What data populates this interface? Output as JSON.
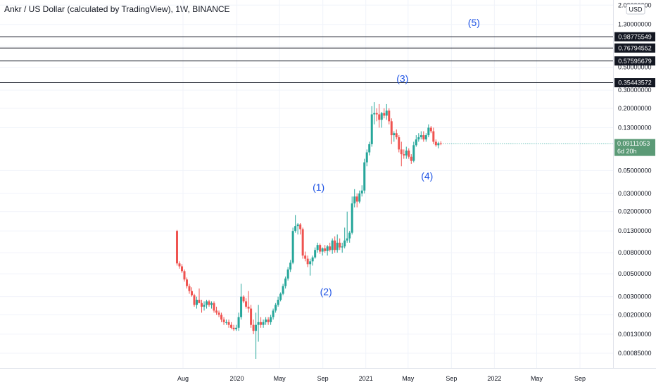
{
  "header": {
    "title": "Ankr / US Dollar (calculated by TradingView), 1W, BINANCE"
  },
  "currency_badge": "USD",
  "chart_data": {
    "type": "candlestick",
    "title": "Ankr / US Dollar (calculated by TradingView), 1W, BINANCE",
    "y_scale": "log",
    "y_ticks": [
      {
        "value": 2.0,
        "label": "2.00000000"
      },
      {
        "value": 1.3,
        "label": "1.30000000"
      },
      {
        "value": 0.8,
        "label": "0.80000000"
      },
      {
        "value": 0.5,
        "label": "0.50000000"
      },
      {
        "value": 0.3,
        "label": "0.30000000"
      },
      {
        "value": 0.2,
        "label": "0.20000000"
      },
      {
        "value": 0.13,
        "label": "0.13000000"
      },
      {
        "value": 0.05,
        "label": "0.05000000"
      },
      {
        "value": 0.03,
        "label": "0.03000000"
      },
      {
        "value": 0.02,
        "label": "0.02000000"
      },
      {
        "value": 0.013,
        "label": "0.01300000"
      },
      {
        "value": 0.008,
        "label": "0.00800000"
      },
      {
        "value": 0.005,
        "label": "0.00500000"
      },
      {
        "value": 0.003,
        "label": "0.00300000"
      },
      {
        "value": 0.002,
        "label": "0.00200000"
      },
      {
        "value": 0.0013,
        "label": "0.00130000"
      },
      {
        "value": 0.00085,
        "label": "0.00085000"
      }
    ],
    "x_ticks": [
      {
        "date": "2019-08",
        "label": "Aug"
      },
      {
        "date": "2020-01",
        "label": "2020"
      },
      {
        "date": "2020-05",
        "label": "May"
      },
      {
        "date": "2020-09",
        "label": "Sep"
      },
      {
        "date": "2021-01",
        "label": "2021"
      },
      {
        "date": "2021-05",
        "label": "May"
      },
      {
        "date": "2021-09",
        "label": "Sep"
      },
      {
        "date": "2022-01",
        "label": "2022"
      },
      {
        "date": "2022-05",
        "label": "May"
      },
      {
        "date": "2022-09",
        "label": "Sep"
      }
    ],
    "horizontal_levels": [
      {
        "value": 0.98775549,
        "label": "0.98775549"
      },
      {
        "value": 0.76794552,
        "label": "0.76794552"
      },
      {
        "value": 0.57595679,
        "label": "0.57595679"
      },
      {
        "value": 0.35443572,
        "label": "0.35443572"
      }
    ],
    "current_price": {
      "value": 0.09111053,
      "label": "0.09111053",
      "countdown": "6d 20h"
    },
    "wave_labels": [
      {
        "text": "(1)",
        "date": "2020-08-20",
        "price": 0.032
      },
      {
        "text": "(2)",
        "date": "2020-09-10",
        "price": 0.0031
      },
      {
        "text": "(3)",
        "date": "2021-04-15",
        "price": 0.36
      },
      {
        "text": "(4)",
        "date": "2021-06-24",
        "price": 0.041
      },
      {
        "text": "(5)",
        "date": "2021-11-04",
        "price": 1.25
      }
    ],
    "candles": [
      {
        "t": "2019-07-15",
        "o": 0.013,
        "h": 0.0133,
        "l": 0.006,
        "c": 0.0063
      },
      {
        "t": "2019-07-22",
        "o": 0.0063,
        "h": 0.0066,
        "l": 0.0056,
        "c": 0.0059
      },
      {
        "t": "2019-07-29",
        "o": 0.0059,
        "h": 0.0062,
        "l": 0.0051,
        "c": 0.0053
      },
      {
        "t": "2019-08-05",
        "o": 0.0053,
        "h": 0.0055,
        "l": 0.0042,
        "c": 0.0044
      },
      {
        "t": "2019-08-12",
        "o": 0.0044,
        "h": 0.0046,
        "l": 0.0036,
        "c": 0.0038
      },
      {
        "t": "2019-08-19",
        "o": 0.0038,
        "h": 0.004,
        "l": 0.0032,
        "c": 0.0034
      },
      {
        "t": "2019-08-26",
        "o": 0.0034,
        "h": 0.0037,
        "l": 0.003,
        "c": 0.0031
      },
      {
        "t": "2019-09-02",
        "o": 0.0031,
        "h": 0.0032,
        "l": 0.0024,
        "c": 0.0025
      },
      {
        "t": "2019-09-09",
        "o": 0.0025,
        "h": 0.003,
        "l": 0.0023,
        "c": 0.0028
      },
      {
        "t": "2019-09-16",
        "o": 0.0028,
        "h": 0.0036,
        "l": 0.0026,
        "c": 0.0026
      },
      {
        "t": "2019-09-23",
        "o": 0.0026,
        "h": 0.0028,
        "l": 0.0021,
        "c": 0.0024
      },
      {
        "t": "2019-09-30",
        "o": 0.0024,
        "h": 0.0027,
        "l": 0.0022,
        "c": 0.0025
      },
      {
        "t": "2019-10-07",
        "o": 0.0025,
        "h": 0.0028,
        "l": 0.0023,
        "c": 0.0027
      },
      {
        "t": "2019-10-14",
        "o": 0.0027,
        "h": 0.0028,
        "l": 0.0024,
        "c": 0.0025
      },
      {
        "t": "2019-10-21",
        "o": 0.0025,
        "h": 0.0027,
        "l": 0.0023,
        "c": 0.0026
      },
      {
        "t": "2019-10-28",
        "o": 0.0026,
        "h": 0.0027,
        "l": 0.0021,
        "c": 0.0022
      },
      {
        "t": "2019-11-04",
        "o": 0.0022,
        "h": 0.0024,
        "l": 0.002,
        "c": 0.0021
      },
      {
        "t": "2019-11-11",
        "o": 0.0021,
        "h": 0.0022,
        "l": 0.0019,
        "c": 0.002
      },
      {
        "t": "2019-11-18",
        "o": 0.002,
        "h": 0.0021,
        "l": 0.0017,
        "c": 0.0018
      },
      {
        "t": "2019-11-25",
        "o": 0.0018,
        "h": 0.0019,
        "l": 0.0016,
        "c": 0.0017
      },
      {
        "t": "2019-12-02",
        "o": 0.0017,
        "h": 0.0018,
        "l": 0.0016,
        "c": 0.0017
      },
      {
        "t": "2019-12-09",
        "o": 0.0017,
        "h": 0.0018,
        "l": 0.0015,
        "c": 0.0016
      },
      {
        "t": "2019-12-16",
        "o": 0.0016,
        "h": 0.0017,
        "l": 0.00145,
        "c": 0.0015
      },
      {
        "t": "2019-12-23",
        "o": 0.0015,
        "h": 0.0016,
        "l": 0.0014,
        "c": 0.00145
      },
      {
        "t": "2019-12-30",
        "o": 0.00145,
        "h": 0.0016,
        "l": 0.0014,
        "c": 0.0015
      },
      {
        "t": "2020-01-06",
        "o": 0.0015,
        "h": 0.0021,
        "l": 0.0014,
        "c": 0.0019
      },
      {
        "t": "2020-01-13",
        "o": 0.0019,
        "h": 0.004,
        "l": 0.0018,
        "c": 0.003
      },
      {
        "t": "2020-01-20",
        "o": 0.003,
        "h": 0.0031,
        "l": 0.0026,
        "c": 0.0027
      },
      {
        "t": "2020-01-27",
        "o": 0.0027,
        "h": 0.0029,
        "l": 0.0023,
        "c": 0.0024
      },
      {
        "t": "2020-02-03",
        "o": 0.0024,
        "h": 0.0034,
        "l": 0.0021,
        "c": 0.0023
      },
      {
        "t": "2020-02-10",
        "o": 0.0023,
        "h": 0.0025,
        "l": 0.0015,
        "c": 0.0016
      },
      {
        "t": "2020-02-17",
        "o": 0.0016,
        "h": 0.0018,
        "l": 0.0013,
        "c": 0.0014
      },
      {
        "t": "2020-02-24",
        "o": 0.0014,
        "h": 0.0021,
        "l": 0.00075,
        "c": 0.0016
      },
      {
        "t": "2020-03-02",
        "o": 0.0016,
        "h": 0.0025,
        "l": 0.0011,
        "c": 0.0017
      },
      {
        "t": "2020-03-09",
        "o": 0.0017,
        "h": 0.0019,
        "l": 0.0015,
        "c": 0.0016
      },
      {
        "t": "2020-03-16",
        "o": 0.0016,
        "h": 0.0018,
        "l": 0.0015,
        "c": 0.0017
      },
      {
        "t": "2020-03-23",
        "o": 0.0017,
        "h": 0.0019,
        "l": 0.0016,
        "c": 0.0018
      },
      {
        "t": "2020-03-30",
        "o": 0.0018,
        "h": 0.0019,
        "l": 0.0016,
        "c": 0.0017
      },
      {
        "t": "2020-04-06",
        "o": 0.0017,
        "h": 0.002,
        "l": 0.0016,
        "c": 0.0019
      },
      {
        "t": "2020-04-13",
        "o": 0.0019,
        "h": 0.0023,
        "l": 0.0018,
        "c": 0.0022
      },
      {
        "t": "2020-04-20",
        "o": 0.0022,
        "h": 0.0026,
        "l": 0.0021,
        "c": 0.0025
      },
      {
        "t": "2020-04-27",
        "o": 0.0025,
        "h": 0.003,
        "l": 0.0024,
        "c": 0.0028
      },
      {
        "t": "2020-05-04",
        "o": 0.0028,
        "h": 0.0033,
        "l": 0.0027,
        "c": 0.0032
      },
      {
        "t": "2020-05-11",
        "o": 0.0032,
        "h": 0.004,
        "l": 0.0031,
        "c": 0.0038
      },
      {
        "t": "2020-05-18",
        "o": 0.0038,
        "h": 0.0047,
        "l": 0.0036,
        "c": 0.0045
      },
      {
        "t": "2020-05-25",
        "o": 0.0045,
        "h": 0.0058,
        "l": 0.0043,
        "c": 0.0055
      },
      {
        "t": "2020-06-01",
        "o": 0.0055,
        "h": 0.0068,
        "l": 0.0052,
        "c": 0.0064
      },
      {
        "t": "2020-06-08",
        "o": 0.0064,
        "h": 0.014,
        "l": 0.0062,
        "c": 0.013
      },
      {
        "t": "2020-06-15",
        "o": 0.013,
        "h": 0.0185,
        "l": 0.0125,
        "c": 0.0145
      },
      {
        "t": "2020-06-22",
        "o": 0.0145,
        "h": 0.0155,
        "l": 0.012,
        "c": 0.015
      },
      {
        "t": "2020-06-29",
        "o": 0.015,
        "h": 0.0155,
        "l": 0.012,
        "c": 0.0135
      },
      {
        "t": "2020-07-06",
        "o": 0.0135,
        "h": 0.014,
        "l": 0.007,
        "c": 0.0075
      },
      {
        "t": "2020-07-13",
        "o": 0.0075,
        "h": 0.0082,
        "l": 0.0066,
        "c": 0.007
      },
      {
        "t": "2020-07-20",
        "o": 0.007,
        "h": 0.0075,
        "l": 0.0058,
        "c": 0.0062
      },
      {
        "t": "2020-07-27",
        "o": 0.0062,
        "h": 0.007,
        "l": 0.0048,
        "c": 0.0066
      },
      {
        "t": "2020-08-03",
        "o": 0.0066,
        "h": 0.0075,
        "l": 0.006,
        "c": 0.0072
      },
      {
        "t": "2020-08-10",
        "o": 0.0072,
        "h": 0.009,
        "l": 0.007,
        "c": 0.0085
      },
      {
        "t": "2020-08-17",
        "o": 0.0085,
        "h": 0.01,
        "l": 0.008,
        "c": 0.0095
      },
      {
        "t": "2020-08-24",
        "o": 0.0095,
        "h": 0.0098,
        "l": 0.0078,
        "c": 0.0082
      },
      {
        "t": "2020-08-31",
        "o": 0.0082,
        "h": 0.009,
        "l": 0.0075,
        "c": 0.0088
      },
      {
        "t": "2020-09-07",
        "o": 0.0088,
        "h": 0.0095,
        "l": 0.008,
        "c": 0.0083
      },
      {
        "t": "2020-09-14",
        "o": 0.0083,
        "h": 0.0095,
        "l": 0.0075,
        "c": 0.0092
      },
      {
        "t": "2020-09-21",
        "o": 0.0092,
        "h": 0.01,
        "l": 0.0082,
        "c": 0.0085
      },
      {
        "t": "2020-09-28",
        "o": 0.0085,
        "h": 0.011,
        "l": 0.0078,
        "c": 0.0105
      },
      {
        "t": "2020-10-05",
        "o": 0.0105,
        "h": 0.0115,
        "l": 0.008,
        "c": 0.0085
      },
      {
        "t": "2020-10-12",
        "o": 0.0085,
        "h": 0.012,
        "l": 0.008,
        "c": 0.01
      },
      {
        "t": "2020-10-19",
        "o": 0.01,
        "h": 0.011,
        "l": 0.0085,
        "c": 0.009
      },
      {
        "t": "2020-10-26",
        "o": 0.009,
        "h": 0.01,
        "l": 0.008,
        "c": 0.0092
      },
      {
        "t": "2020-11-02",
        "o": 0.0092,
        "h": 0.014,
        "l": 0.0088,
        "c": 0.0105
      },
      {
        "t": "2020-11-09",
        "o": 0.0105,
        "h": 0.02,
        "l": 0.01,
        "c": 0.011
      },
      {
        "t": "2020-11-16",
        "o": 0.011,
        "h": 0.013,
        "l": 0.01,
        "c": 0.0125
      },
      {
        "t": "2020-11-23",
        "o": 0.0125,
        "h": 0.028,
        "l": 0.012,
        "c": 0.024
      },
      {
        "t": "2020-11-30",
        "o": 0.024,
        "h": 0.033,
        "l": 0.022,
        "c": 0.028
      },
      {
        "t": "2020-12-07",
        "o": 0.028,
        "h": 0.03,
        "l": 0.022,
        "c": 0.025
      },
      {
        "t": "2020-12-14",
        "o": 0.025,
        "h": 0.032,
        "l": 0.024,
        "c": 0.03
      },
      {
        "t": "2020-12-21",
        "o": 0.03,
        "h": 0.036,
        "l": 0.028,
        "c": 0.032
      },
      {
        "t": "2020-12-28",
        "o": 0.032,
        "h": 0.065,
        "l": 0.03,
        "c": 0.06
      },
      {
        "t": "2021-01-04",
        "o": 0.06,
        "h": 0.08,
        "l": 0.055,
        "c": 0.075
      },
      {
        "t": "2021-01-11",
        "o": 0.075,
        "h": 0.095,
        "l": 0.07,
        "c": 0.09
      },
      {
        "t": "2021-01-18",
        "o": 0.09,
        "h": 0.21,
        "l": 0.085,
        "c": 0.175
      },
      {
        "t": "2021-01-25",
        "o": 0.175,
        "h": 0.23,
        "l": 0.14,
        "c": 0.18
      },
      {
        "t": "2021-02-01",
        "o": 0.18,
        "h": 0.2,
        "l": 0.15,
        "c": 0.175
      },
      {
        "t": "2021-02-08",
        "o": 0.175,
        "h": 0.22,
        "l": 0.13,
        "c": 0.155
      },
      {
        "t": "2021-02-15",
        "o": 0.155,
        "h": 0.185,
        "l": 0.13,
        "c": 0.18
      },
      {
        "t": "2021-02-22",
        "o": 0.18,
        "h": 0.2,
        "l": 0.16,
        "c": 0.17
      },
      {
        "t": "2021-03-01",
        "o": 0.17,
        "h": 0.22,
        "l": 0.155,
        "c": 0.19
      },
      {
        "t": "2021-03-08",
        "o": 0.19,
        "h": 0.2,
        "l": 0.14,
        "c": 0.15
      },
      {
        "t": "2021-03-15",
        "o": 0.15,
        "h": 0.16,
        "l": 0.09,
        "c": 0.11
      },
      {
        "t": "2021-03-22",
        "o": 0.11,
        "h": 0.12,
        "l": 0.095,
        "c": 0.115
      },
      {
        "t": "2021-03-29",
        "o": 0.115,
        "h": 0.125,
        "l": 0.1,
        "c": 0.105
      },
      {
        "t": "2021-04-05",
        "o": 0.105,
        "h": 0.11,
        "l": 0.075,
        "c": 0.08
      },
      {
        "t": "2021-04-12",
        "o": 0.08,
        "h": 0.095,
        "l": 0.055,
        "c": 0.072
      },
      {
        "t": "2021-04-19",
        "o": 0.072,
        "h": 0.08,
        "l": 0.065,
        "c": 0.07
      },
      {
        "t": "2021-04-26",
        "o": 0.07,
        "h": 0.085,
        "l": 0.065,
        "c": 0.078
      },
      {
        "t": "2021-05-03",
        "o": 0.078,
        "h": 0.082,
        "l": 0.065,
        "c": 0.068
      },
      {
        "t": "2021-05-10",
        "o": 0.068,
        "h": 0.072,
        "l": 0.058,
        "c": 0.062
      },
      {
        "t": "2021-05-17",
        "o": 0.062,
        "h": 0.095,
        "l": 0.06,
        "c": 0.088
      },
      {
        "t": "2021-05-24",
        "o": 0.088,
        "h": 0.11,
        "l": 0.085,
        "c": 0.1
      },
      {
        "t": "2021-05-31",
        "o": 0.1,
        "h": 0.115,
        "l": 0.095,
        "c": 0.105
      },
      {
        "t": "2021-06-07",
        "o": 0.105,
        "h": 0.12,
        "l": 0.1,
        "c": 0.11
      },
      {
        "t": "2021-06-14",
        "o": 0.11,
        "h": 0.12,
        "l": 0.095,
        "c": 0.1
      },
      {
        "t": "2021-06-21",
        "o": 0.1,
        "h": 0.115,
        "l": 0.095,
        "c": 0.11
      },
      {
        "t": "2021-06-28",
        "o": 0.11,
        "h": 0.14,
        "l": 0.105,
        "c": 0.13
      },
      {
        "t": "2021-07-05",
        "o": 0.13,
        "h": 0.135,
        "l": 0.115,
        "c": 0.12
      },
      {
        "t": "2021-07-12",
        "o": 0.12,
        "h": 0.13,
        "l": 0.09,
        "c": 0.095
      },
      {
        "t": "2021-07-19",
        "o": 0.095,
        "h": 0.1,
        "l": 0.085,
        "c": 0.088
      },
      {
        "t": "2021-07-26",
        "o": 0.088,
        "h": 0.095,
        "l": 0.082,
        "c": 0.092
      },
      {
        "t": "2021-08-02",
        "o": 0.092,
        "h": 0.096,
        "l": 0.088,
        "c": 0.0911
      }
    ]
  }
}
